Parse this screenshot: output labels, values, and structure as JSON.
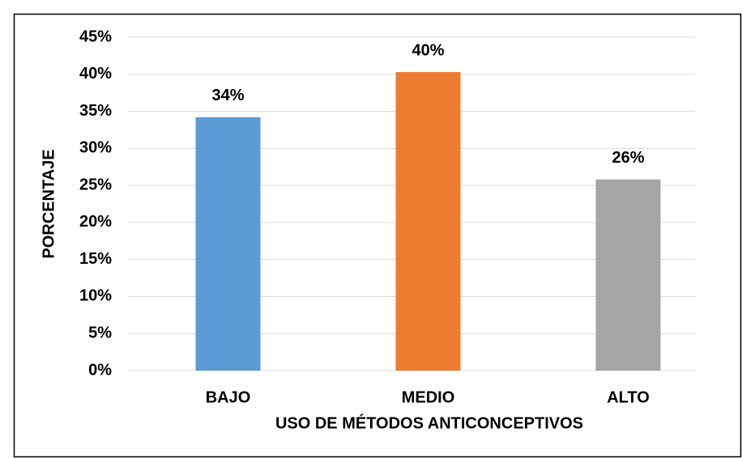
{
  "chart_data": {
    "type": "bar",
    "categories": [
      "BAJO",
      "MEDIO",
      "ALTO"
    ],
    "values": [
      34.2,
      40.3,
      25.8
    ],
    "value_labels": [
      "34%",
      "40%",
      "26%"
    ],
    "colors": [
      "#5b9bd5",
      "#ed7d31",
      "#a5a5a5"
    ],
    "x_label": "USO DE MÉTODOS ANTICONCEPTIVOS",
    "y_label": "PORCENTAJE",
    "ylim": [
      0,
      45
    ],
    "yticks": [
      {
        "value": 0,
        "label": "0%"
      },
      {
        "value": 5,
        "label": "5%"
      },
      {
        "value": 10,
        "label": "10%"
      },
      {
        "value": 15,
        "label": "15%"
      },
      {
        "value": 20,
        "label": "20%"
      },
      {
        "value": 25,
        "label": "25%"
      },
      {
        "value": 30,
        "label": "30%"
      },
      {
        "value": 35,
        "label": "35%"
      },
      {
        "value": 40,
        "label": "40%"
      },
      {
        "value": 45,
        "label": "45%"
      }
    ],
    "grid": true
  }
}
